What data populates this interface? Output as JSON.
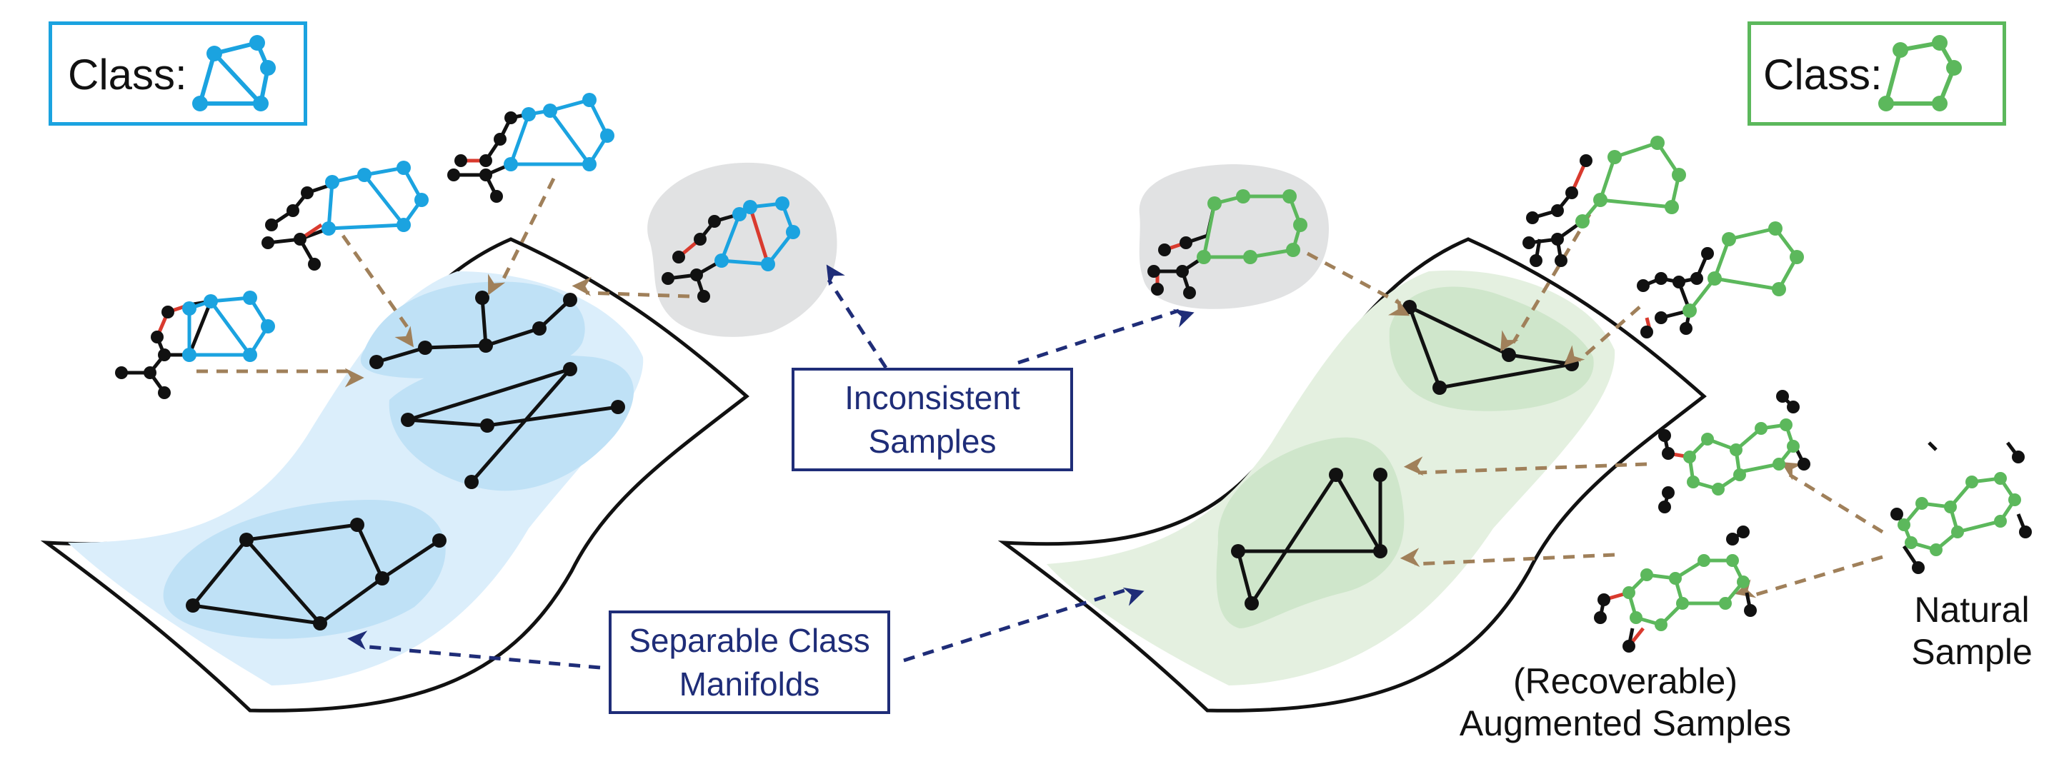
{
  "left_class": {
    "label": "Class:",
    "color": "#1ba3e0"
  },
  "right_class": {
    "label": "Class:",
    "color": "#5cb85c"
  },
  "inconsistent": {
    "line1": "Inconsistent",
    "line2": "Samples",
    "color": "#1f2d78"
  },
  "separable": {
    "line1": "Separable Class",
    "line2": "Manifolds",
    "color": "#1f2d78"
  },
  "augmented": {
    "line1": "(Recoverable)",
    "line2": "Augmented Samples"
  },
  "natural": {
    "line1": "Natural",
    "line2": "Sample"
  },
  "colors": {
    "blue": "#1ba3e0",
    "green": "#5cb85c",
    "augment_edge": "#d93a2e",
    "arrow_brown": "#a0805a",
    "arrow_navy": "#1f2d78",
    "manifold_blue": "#dbeefb",
    "cluster_blue": "#bfe1f6",
    "manifold_green": "#e4f0e0",
    "cluster_green": "#cfe6cb",
    "inconsistent_gray": "#e1e2e3"
  }
}
